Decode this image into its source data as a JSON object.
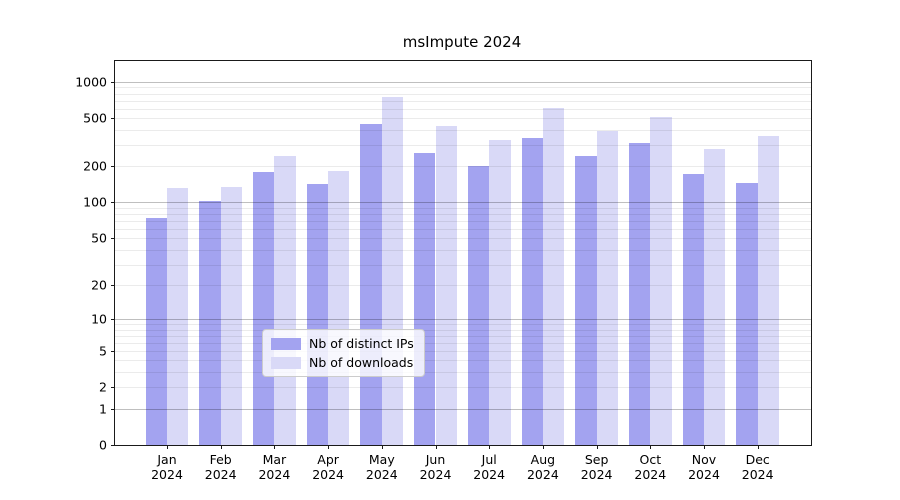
{
  "chart_data": {
    "type": "bar",
    "title": "msImpute 2024",
    "categories": [
      "Jan 2024",
      "Feb 2024",
      "Mar 2024",
      "Apr 2024",
      "May 2024",
      "Jun 2024",
      "Jul 2024",
      "Aug 2024",
      "Sep 2024",
      "Oct 2024",
      "Nov 2024",
      "Dec 2024"
    ],
    "series": [
      {
        "name": "Nb of distinct IPs",
        "color": "#a3a3f0",
        "values": [
          74,
          102,
          179,
          143,
          453,
          257,
          200,
          343,
          244,
          312,
          172,
          146
        ]
      },
      {
        "name": "Nb of downloads",
        "color": "#d9d9f7",
        "values": [
          133,
          134,
          242,
          183,
          750,
          435,
          332,
          613,
          391,
          513,
          277,
          357
        ]
      }
    ],
    "yscale": "log10(value+1)",
    "yticks": [
      0,
      1,
      2,
      5,
      10,
      20,
      50,
      100,
      200,
      500,
      1000
    ],
    "major_grid_values": [
      1,
      10,
      100,
      1000
    ],
    "ylim": [
      0,
      1490
    ],
    "xlabel": "",
    "ylabel": "",
    "grid": "horizontal major+minor",
    "legend_position": "lower center",
    "colors": {
      "axis": "#1a1a1a",
      "major_grid": "#bfbfbf",
      "minor_grid": "#ebebeb",
      "background": "#ffffff"
    }
  }
}
